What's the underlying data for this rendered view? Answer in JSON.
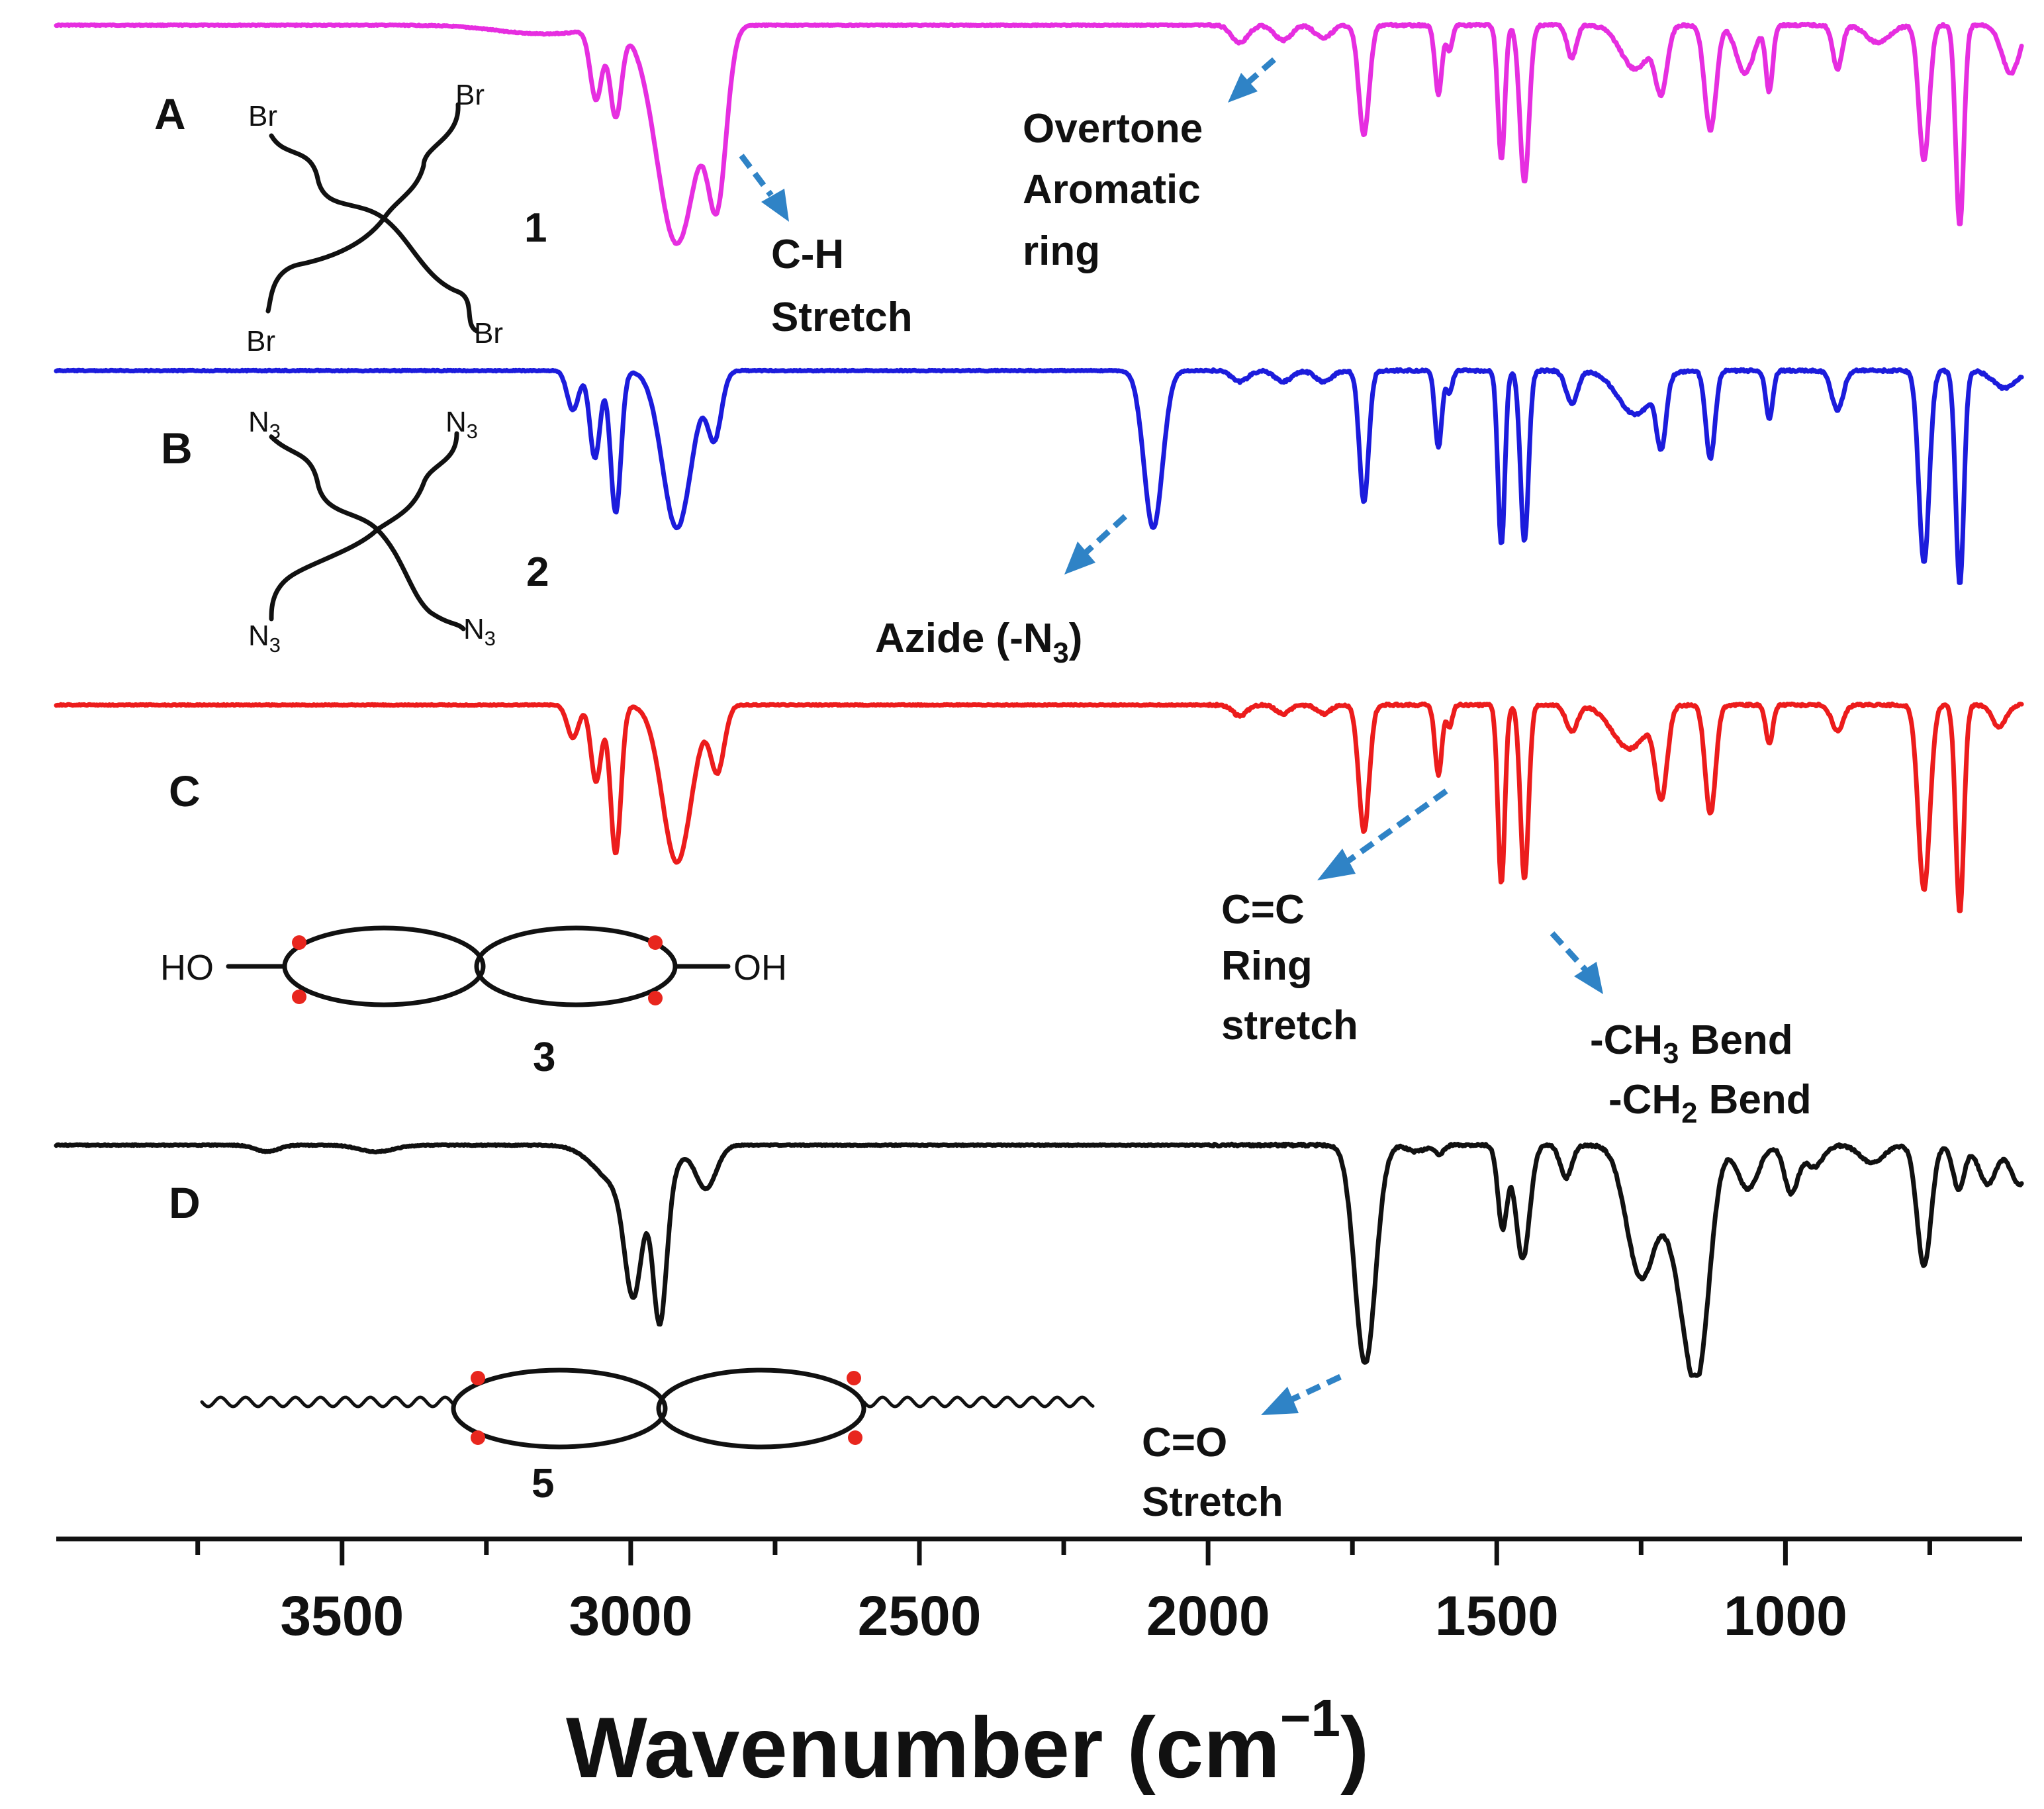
{
  "chart_data": {
    "type": "line",
    "xlabel": "Wavenumber (cm",
    "xlabel_sup": "−1",
    "xlabel_close": ")",
    "xlim": [
      3995,
      590
    ],
    "x_direction": "reversed",
    "y_axis_shown": false,
    "x_ticks": [
      {
        "value": 3500,
        "label": "3500"
      },
      {
        "value": 3000,
        "label": "3000"
      },
      {
        "value": 2500,
        "label": "2500"
      },
      {
        "value": 2000,
        "label": "2000"
      },
      {
        "value": 1500,
        "label": "1500"
      },
      {
        "value": 1000,
        "label": "1000"
      }
    ],
    "minor_ticks": [
      3750,
      3250,
      2750,
      2250,
      1750,
      1250,
      750
    ],
    "series": [
      {
        "name": "A",
        "compound": "1",
        "color": "#e62ee0",
        "depth": 330,
        "peaks": [
          {
            "x": 3060,
            "d": 0.32,
            "w": 10
          },
          {
            "x": 3026,
            "d": 0.4,
            "w": 10
          },
          {
            "x": 2920,
            "d": 1.0,
            "w": 35
          },
          {
            "x": 2850,
            "d": 0.72,
            "w": 16
          },
          {
            "x": 3150,
            "d": 0.04,
            "w": 80
          },
          {
            "x": 1945,
            "d": 0.08,
            "w": 14
          },
          {
            "x": 1870,
            "d": 0.07,
            "w": 14
          },
          {
            "x": 1800,
            "d": 0.06,
            "w": 14
          },
          {
            "x": 1730,
            "d": 0.5,
            "w": 9
          },
          {
            "x": 1601,
            "d": 0.32,
            "w": 6
          },
          {
            "x": 1582,
            "d": 0.12,
            "w": 5
          },
          {
            "x": 1492,
            "d": 0.62,
            "w": 6
          },
          {
            "x": 1452,
            "d": 0.72,
            "w": 8
          },
          {
            "x": 1370,
            "d": 0.15,
            "w": 8
          },
          {
            "x": 1260,
            "d": 0.2,
            "w": 25
          },
          {
            "x": 1215,
            "d": 0.28,
            "w": 10
          },
          {
            "x": 1130,
            "d": 0.48,
            "w": 10
          },
          {
            "x": 1070,
            "d": 0.22,
            "w": 15
          },
          {
            "x": 1028,
            "d": 0.3,
            "w": 6
          },
          {
            "x": 910,
            "d": 0.2,
            "w": 8
          },
          {
            "x": 840,
            "d": 0.08,
            "w": 20
          },
          {
            "x": 760,
            "d": 0.62,
            "w": 9
          },
          {
            "x": 698,
            "d": 0.92,
            "w": 7
          },
          {
            "x": 610,
            "d": 0.22,
            "w": 15
          }
        ]
      },
      {
        "name": "B",
        "compound": "2",
        "color": "#1c1cdc",
        "depth": 330,
        "peaks": [
          {
            "x": 3100,
            "d": 0.18,
            "w": 10
          },
          {
            "x": 3062,
            "d": 0.4,
            "w": 9
          },
          {
            "x": 3026,
            "d": 0.65,
            "w": 9
          },
          {
            "x": 2920,
            "d": 0.72,
            "w": 25
          },
          {
            "x": 2855,
            "d": 0.3,
            "w": 12
          },
          {
            "x": 2095,
            "d": 0.72,
            "w": 16
          },
          {
            "x": 1945,
            "d": 0.05,
            "w": 14
          },
          {
            "x": 1870,
            "d": 0.05,
            "w": 14
          },
          {
            "x": 1800,
            "d": 0.05,
            "w": 14
          },
          {
            "x": 1730,
            "d": 0.6,
            "w": 8
          },
          {
            "x": 1601,
            "d": 0.35,
            "w": 6
          },
          {
            "x": 1582,
            "d": 0.1,
            "w": 5
          },
          {
            "x": 1492,
            "d": 0.8,
            "w": 6
          },
          {
            "x": 1452,
            "d": 0.78,
            "w": 7
          },
          {
            "x": 1370,
            "d": 0.15,
            "w": 10
          },
          {
            "x": 1260,
            "d": 0.2,
            "w": 30
          },
          {
            "x": 1215,
            "d": 0.3,
            "w": 8
          },
          {
            "x": 1130,
            "d": 0.4,
            "w": 8
          },
          {
            "x": 1028,
            "d": 0.22,
            "w": 6
          },
          {
            "x": 910,
            "d": 0.18,
            "w": 10
          },
          {
            "x": 760,
            "d": 0.88,
            "w": 9
          },
          {
            "x": 698,
            "d": 0.98,
            "w": 7
          },
          {
            "x": 620,
            "d": 0.08,
            "w": 20
          }
        ]
      },
      {
        "name": "C",
        "compound": "3",
        "color": "#ec1c1c",
        "depth": 330,
        "peaks": [
          {
            "x": 3100,
            "d": 0.15,
            "w": 10
          },
          {
            "x": 3060,
            "d": 0.35,
            "w": 9
          },
          {
            "x": 3026,
            "d": 0.68,
            "w": 9
          },
          {
            "x": 2920,
            "d": 0.72,
            "w": 25
          },
          {
            "x": 2850,
            "d": 0.3,
            "w": 12
          },
          {
            "x": 1945,
            "d": 0.05,
            "w": 12
          },
          {
            "x": 1870,
            "d": 0.04,
            "w": 12
          },
          {
            "x": 1800,
            "d": 0.04,
            "w": 12
          },
          {
            "x": 1730,
            "d": 0.58,
            "w": 9
          },
          {
            "x": 1601,
            "d": 0.32,
            "w": 6
          },
          {
            "x": 1582,
            "d": 0.1,
            "w": 5
          },
          {
            "x": 1492,
            "d": 0.82,
            "w": 6
          },
          {
            "x": 1452,
            "d": 0.8,
            "w": 7
          },
          {
            "x": 1370,
            "d": 0.12,
            "w": 10
          },
          {
            "x": 1270,
            "d": 0.2,
            "w": 30
          },
          {
            "x": 1215,
            "d": 0.4,
            "w": 10
          },
          {
            "x": 1130,
            "d": 0.5,
            "w": 9
          },
          {
            "x": 1028,
            "d": 0.18,
            "w": 6
          },
          {
            "x": 910,
            "d": 0.12,
            "w": 10
          },
          {
            "x": 760,
            "d": 0.85,
            "w": 10
          },
          {
            "x": 698,
            "d": 0.95,
            "w": 7
          },
          {
            "x": 630,
            "d": 0.1,
            "w": 12
          }
        ]
      },
      {
        "name": "D",
        "compound": "5",
        "color": "#111111",
        "depth": 330,
        "peaks": [
          {
            "x": 3630,
            "d": 0.03,
            "w": 20
          },
          {
            "x": 3440,
            "d": 0.03,
            "w": 30
          },
          {
            "x": 3020,
            "d": 0.18,
            "w": 40
          },
          {
            "x": 2995,
            "d": 0.55,
            "w": 15
          },
          {
            "x": 2950,
            "d": 0.7,
            "w": 12
          },
          {
            "x": 2935,
            "d": 0.1,
            "w": 20
          },
          {
            "x": 2870,
            "d": 0.2,
            "w": 18
          },
          {
            "x": 1728,
            "d": 1.0,
            "w": 18
          },
          {
            "x": 1640,
            "d": 0.03,
            "w": 15
          },
          {
            "x": 1600,
            "d": 0.04,
            "w": 8
          },
          {
            "x": 1490,
            "d": 0.38,
            "w": 8
          },
          {
            "x": 1455,
            "d": 0.52,
            "w": 12
          },
          {
            "x": 1380,
            "d": 0.15,
            "w": 10
          },
          {
            "x": 1250,
            "d": 0.6,
            "w": 25
          },
          {
            "x": 1180,
            "d": 0.5,
            "w": 25
          },
          {
            "x": 1150,
            "d": 0.82,
            "w": 20
          },
          {
            "x": 1065,
            "d": 0.2,
            "w": 18
          },
          {
            "x": 990,
            "d": 0.22,
            "w": 12
          },
          {
            "x": 950,
            "d": 0.1,
            "w": 15
          },
          {
            "x": 850,
            "d": 0.08,
            "w": 20
          },
          {
            "x": 760,
            "d": 0.55,
            "w": 12
          },
          {
            "x": 700,
            "d": 0.2,
            "w": 10
          },
          {
            "x": 650,
            "d": 0.18,
            "w": 15
          },
          {
            "x": 595,
            "d": 0.18,
            "w": 15
          }
        ]
      }
    ],
    "annotations": [
      {
        "panel": "A",
        "lines": [
          "C-H",
          "Stretch"
        ],
        "target_x": 2855
      },
      {
        "panel": "A",
        "lines": [
          "Overtone",
          "Aromatic",
          "ring"
        ],
        "target_x": 1900
      },
      {
        "panel": "B",
        "text": "Azide (-N",
        "sub": "3",
        "close": ")",
        "target_x": 2095
      },
      {
        "panel": "C",
        "lines": [
          "C=C",
          "Ring",
          "stretch"
        ],
        "target_x": 1601
      },
      {
        "panel": "C",
        "line1": {
          "text": "-CH",
          "sub": "3",
          "rest": " Bend"
        },
        "line2": {
          "text": "-CH",
          "sub": "2",
          "rest": " Bend"
        },
        "target_x": 1452
      },
      {
        "panel": "D",
        "lines": [
          "C=O",
          "Stretch"
        ],
        "target_x": 1728
      }
    ],
    "structures": [
      {
        "panel": "A",
        "compound": "1",
        "end_groups": [
          "Br",
          "Br",
          "Br",
          "Br"
        ]
      },
      {
        "panel": "B",
        "compound": "2",
        "end_group": "N",
        "end_group_sub": "3"
      },
      {
        "panel": "C",
        "compound": "3",
        "end_groups": [
          "HO",
          "OH"
        ]
      },
      {
        "panel": "D",
        "compound": "5"
      }
    ],
    "arrow_color": "#2f83c6"
  }
}
